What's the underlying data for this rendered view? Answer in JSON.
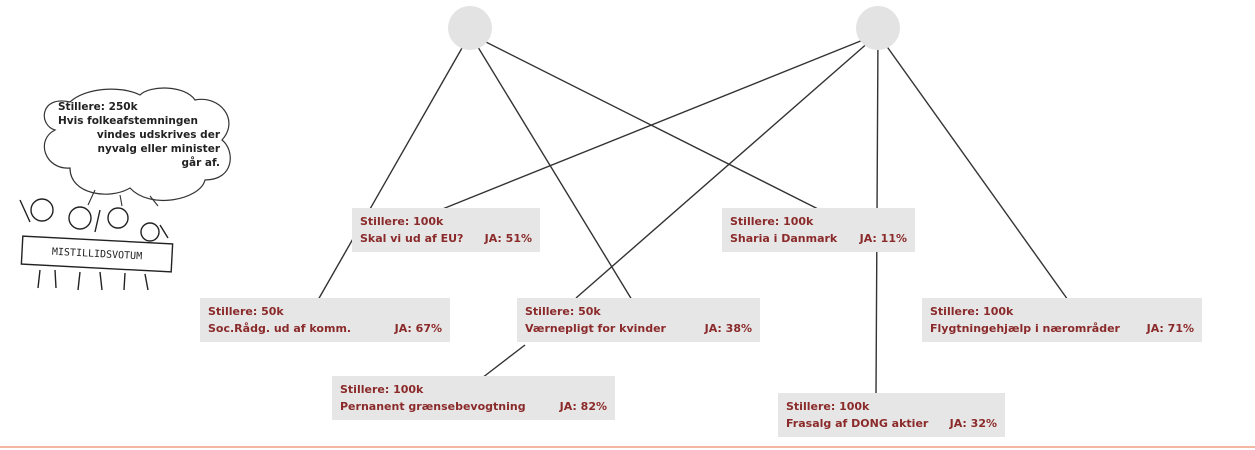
{
  "speech_bubble": [
    "Stillere: 250k",
    "Hvis folkeafstemningen",
    "vindes udskrives der",
    "nyvalg eller minister",
    "går af."
  ],
  "sign": "MISTILLIDSVOTUM",
  "nodes": [
    {
      "supporters": "Stillere: 100k",
      "title": "Skal vi ud af EU?",
      "yes": "JA: 51%"
    },
    {
      "supporters": "Stillere: 100k",
      "title": "Sharia i Danmark",
      "yes": "JA: 11%"
    },
    {
      "supporters": "Stillere: 50k",
      "title": "Soc.Rådg. ud af komm.",
      "yes": "JA: 67%"
    },
    {
      "supporters": "Stillere: 50k",
      "title": "Værnepligt for kvinder",
      "yes": "JA: 38%"
    },
    {
      "supporters": "Stillere: 100k",
      "title": "Flygtningehjælp i nærområder",
      "yes": "JA: 71%"
    },
    {
      "supporters": "Stillere: 100k",
      "title": "Pernanent grænsebevogtning",
      "yes": "JA: 82%"
    },
    {
      "supporters": "Stillere: 100k",
      "title": "Frasalg af DONG aktier",
      "yes": "JA: 32%"
    }
  ]
}
